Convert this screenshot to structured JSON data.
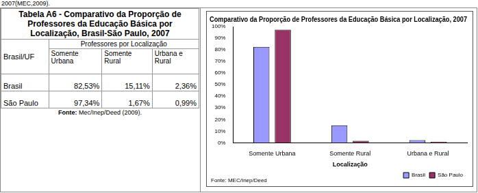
{
  "caption_fragment": "2007(MEC,2009).",
  "table": {
    "title": "Tabela A6 - Comparativo da Proporção de Professores da Educação Básica por Localização, Brasil-São Paulo, 2007",
    "header": {
      "row_header": "Brasil/UF",
      "group": "Professores por Localização",
      "columns": [
        "Somente Urbana",
        "Somente Rural",
        "Urbana e Rural"
      ]
    },
    "rows": [
      [
        "Brasil",
        "82,53%",
        "15,11%",
        "2,36%"
      ],
      [
        "São Paulo",
        "97,34%",
        "1,67%",
        "0,99%"
      ]
    ],
    "source_label": "Fonte:",
    "source": "Mec/Inep/Deed (2009)."
  },
  "chart_data": {
    "type": "bar",
    "title": "Comparativo da Proporção de Professores da Educação Básica por Localização, 2007",
    "xlabel": "Localização",
    "source": "Fonte: MEC/Inep/Deed",
    "categories": [
      "Somente Urbana",
      "Somente Rural",
      "Urbana e Rural"
    ],
    "series": [
      {
        "name": "Brasil",
        "color": "#9999ff",
        "values": [
          82.53,
          15.11,
          2.36
        ]
      },
      {
        "name": "São Paulo",
        "color": "#993366",
        "values": [
          97.34,
          1.67,
          0.99
        ]
      }
    ],
    "ylim": [
      0,
      100
    ],
    "yticks": [
      {
        "value": 0,
        "label": "0%"
      },
      {
        "value": 10,
        "label": "10%"
      },
      {
        "value": 20,
        "label": "20%"
      },
      {
        "value": 30,
        "label": "30%"
      },
      {
        "value": 40,
        "label": "40%"
      },
      {
        "value": 50,
        "label": "50%"
      },
      {
        "value": 60,
        "label": "60%"
      },
      {
        "value": 70,
        "label": "70%"
      },
      {
        "value": 80,
        "label": "80%"
      },
      {
        "value": 90,
        "label": "90%"
      },
      {
        "value": 100,
        "label": "100%"
      }
    ],
    "grid": false,
    "legend": "bottom"
  }
}
